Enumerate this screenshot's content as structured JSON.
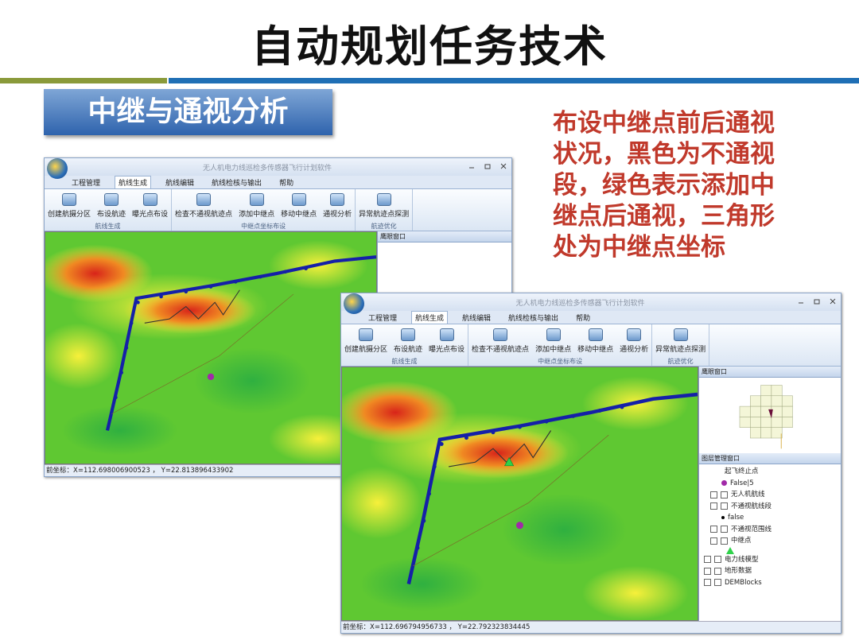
{
  "title": "自动规划任务技术",
  "section": "中继与通视分析",
  "caption": "布设中继点前后通视状况，黑色为不通视段，绿色表示添加中继点后通视，三角形处为中继点坐标",
  "windows": [
    {
      "app_title": "无人机电力线巡检多传感器飞行计划软件",
      "tabs": [
        "工程管理",
        "航线生成",
        "航线编辑",
        "航线检核与输出",
        "帮助"
      ],
      "buttons": [
        "创建航摄分区",
        "布设航迹",
        "曝光点布设",
        "检查不通视航迹点",
        "添加中继点",
        "移动中继点",
        "通视分析",
        "异常航迹点探测"
      ],
      "groups": [
        "航线生成",
        "中继点坐标布设",
        "航迹优化"
      ],
      "eagle_eye": "鹰眼窗口",
      "status": "前坐标：X=112.698006900523 ，  Y=22.813896433902"
    },
    {
      "app_title": "无人机电力线巡检多传感器飞行计划软件",
      "tabs": [
        "工程管理",
        "航线生成",
        "航线编辑",
        "航线检核与输出",
        "帮助"
      ],
      "buttons": [
        "创建航摄分区",
        "布设航迹",
        "曝光点布设",
        "检查不通视航迹点",
        "添加中继点",
        "移动中继点",
        "通视分析",
        "异常航迹点探测"
      ],
      "groups": [
        "航线生成",
        "中继点坐标布设",
        "航迹优化"
      ],
      "eagle_eye": "鹰眼窗口",
      "layer_panel": "图层管理窗口",
      "layers": [
        "起飞终止点",
        "False|5",
        "无人机航线",
        "不通视航线段",
        "false",
        "不通视范围线",
        "中继点",
        "电力线模型",
        "地形数据",
        "DEMBlocks"
      ],
      "status": "前坐标：X=112.696794956733 ，  Y=22.792323834445"
    }
  ]
}
